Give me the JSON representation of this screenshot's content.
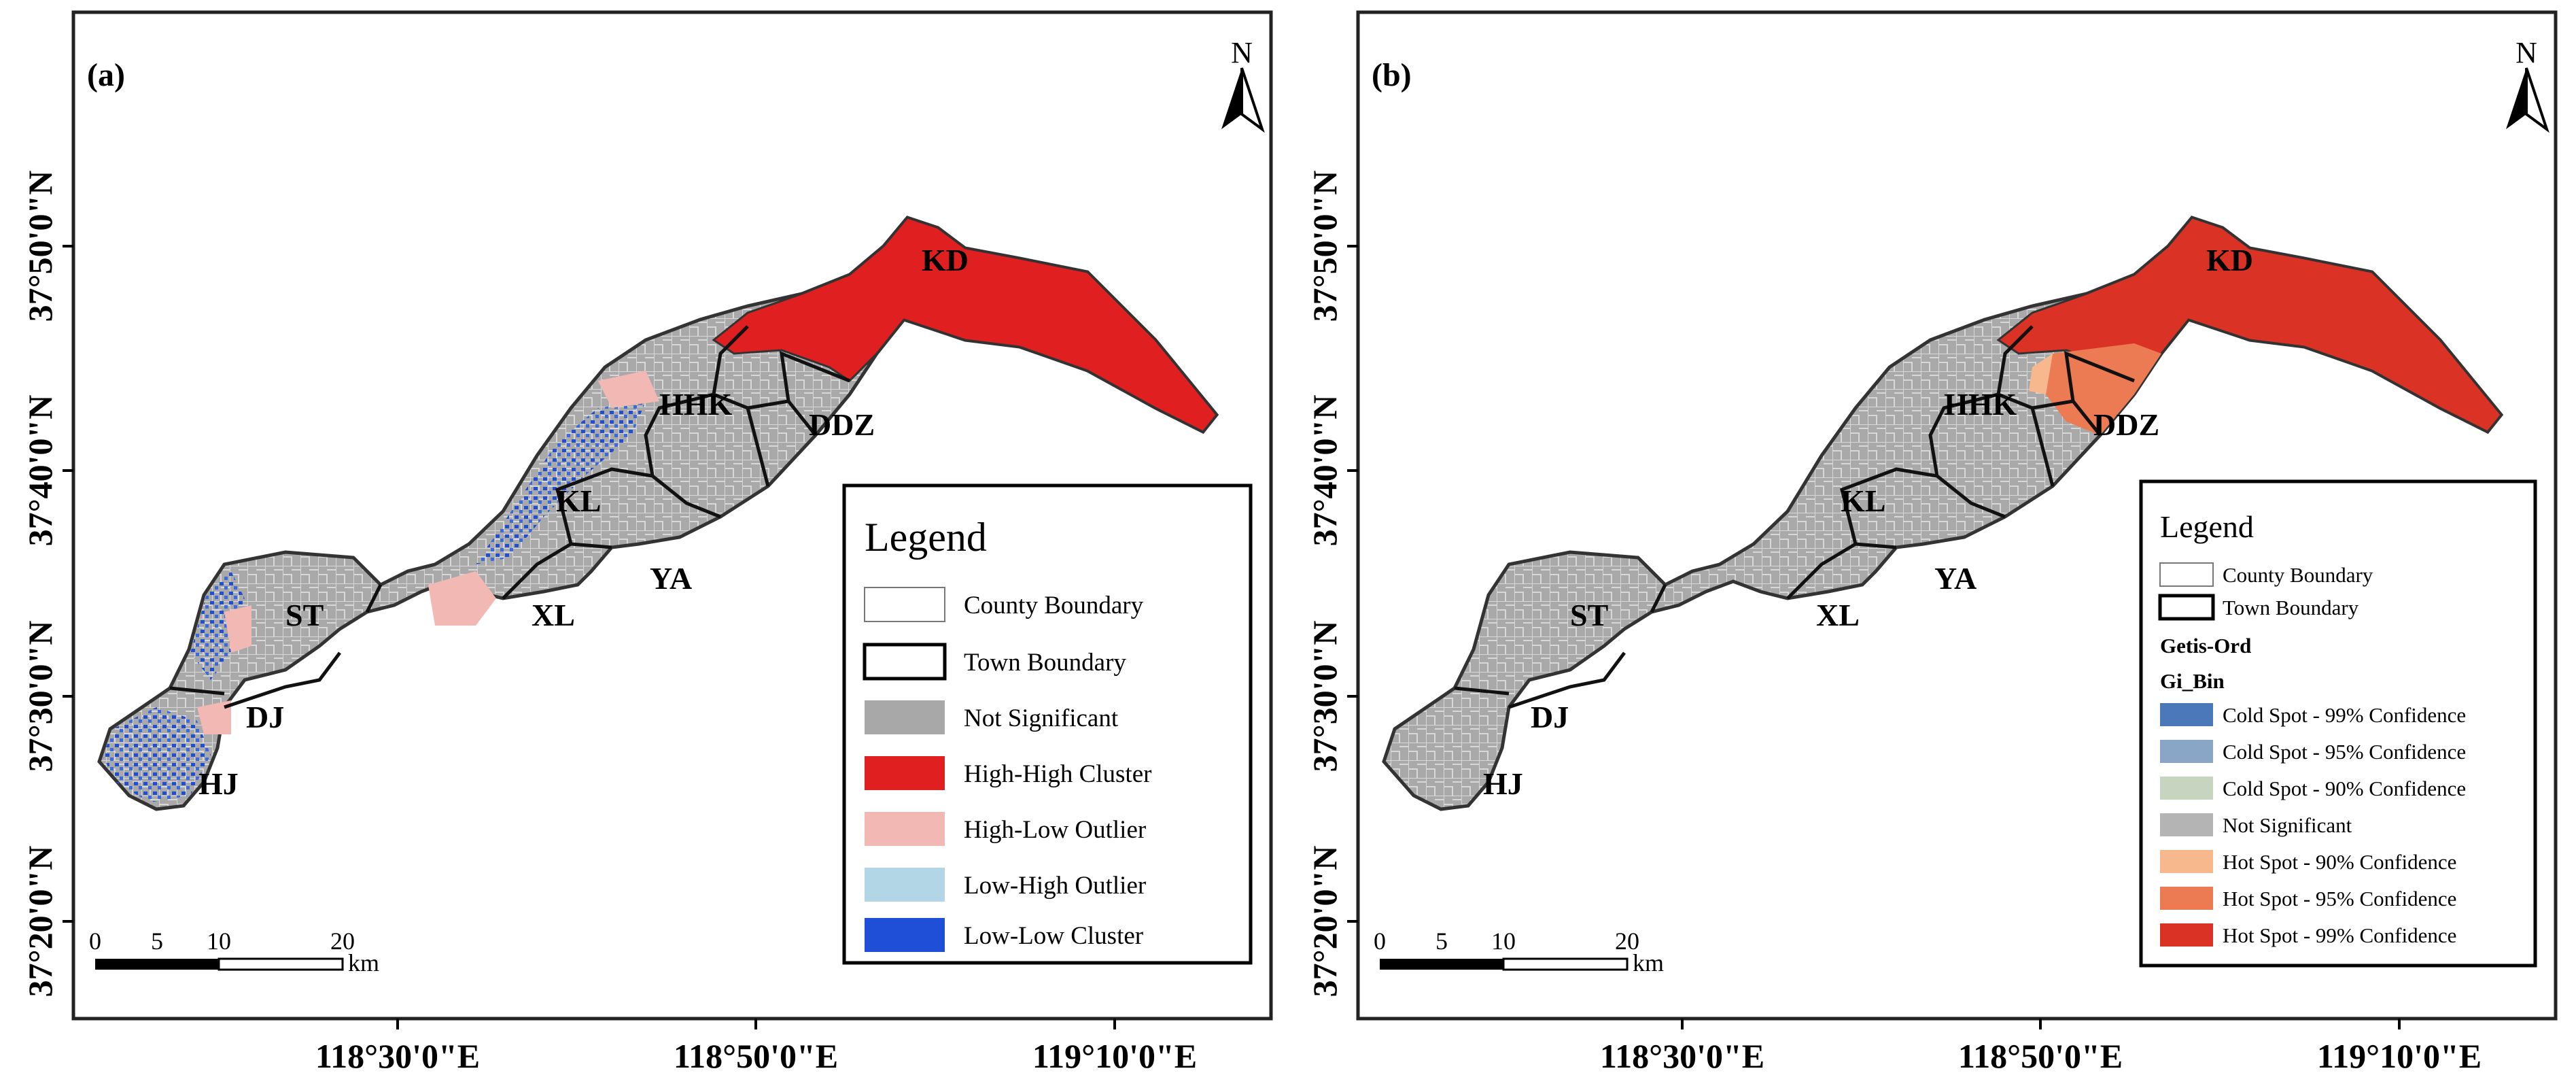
{
  "panels": [
    {
      "label": "(a)",
      "north": "N",
      "y_ticks": [
        "37°50'0\"N",
        "37°40'0\"N",
        "37°30'0\"N",
        "37°20'0\"N"
      ],
      "x_ticks": [
        "118°30'0\"E",
        "118°50'0\"E",
        "119°10'0\"E"
      ],
      "towns": [
        "KD",
        "HHK",
        "DDZ",
        "KL",
        "YA",
        "ST",
        "XL",
        "DJ",
        "HJ"
      ],
      "scale": {
        "labels": [
          "0",
          "5",
          "10",
          "20"
        ],
        "unit": "km"
      },
      "legend": {
        "title": "Legend",
        "items": [
          {
            "label": "County Boundary",
            "color": "#ffffff",
            "style": "thin"
          },
          {
            "label": "Town Boundary",
            "color": "#ffffff",
            "style": "thick"
          },
          {
            "label": "Not Significant",
            "color": "#a8a8a8"
          },
          {
            "label": "High-High Cluster",
            "color": "#e02020"
          },
          {
            "label": "High-Low Outlier",
            "color": "#f2b8b4"
          },
          {
            "label": "Low-High Outlier",
            "color": "#b3d6e6"
          },
          {
            "label": "Low-Low Cluster",
            "color": "#1f4fd6"
          }
        ]
      }
    },
    {
      "label": "(b)",
      "north": "N",
      "y_ticks": [
        "37°50'0\"N",
        "37°40'0\"N",
        "37°30'0\"N",
        "37°20'0\"N"
      ],
      "x_ticks": [
        "118°30'0\"E",
        "118°50'0\"E",
        "119°10'0\"E"
      ],
      "towns": [
        "KD",
        "HHK",
        "DDZ",
        "KL",
        "YA",
        "ST",
        "XL",
        "DJ",
        "HJ"
      ],
      "scale": {
        "labels": [
          "0",
          "5",
          "10",
          "20"
        ],
        "unit": "km"
      },
      "legend": {
        "title": "Legend",
        "items": [
          {
            "label": "County Boundary",
            "color": "#ffffff",
            "style": "thin"
          },
          {
            "label": "Town Boundary",
            "color": "#ffffff",
            "style": "thick"
          }
        ],
        "subtitle1": "Getis-Ord",
        "subtitle2": "Gi_Bin",
        "bins": [
          {
            "label": "Cold Spot - 99% Confidence",
            "color": "#4a78b8"
          },
          {
            "label": "Cold Spot - 95% Confidence",
            "color": "#8aa6c6"
          },
          {
            "label": "Cold Spot - 90% Confidence",
            "color": "#c6d4c0"
          },
          {
            "label": "Not Significant",
            "color": "#b4b4b4"
          },
          {
            "label": "Hot Spot - 90% Confidence",
            "color": "#f6b88c"
          },
          {
            "label": "Hot Spot - 95% Confidence",
            "color": "#ec7a52"
          },
          {
            "label": "Hot Spot - 99% Confidence",
            "color": "#da3224"
          }
        ]
      }
    }
  ]
}
